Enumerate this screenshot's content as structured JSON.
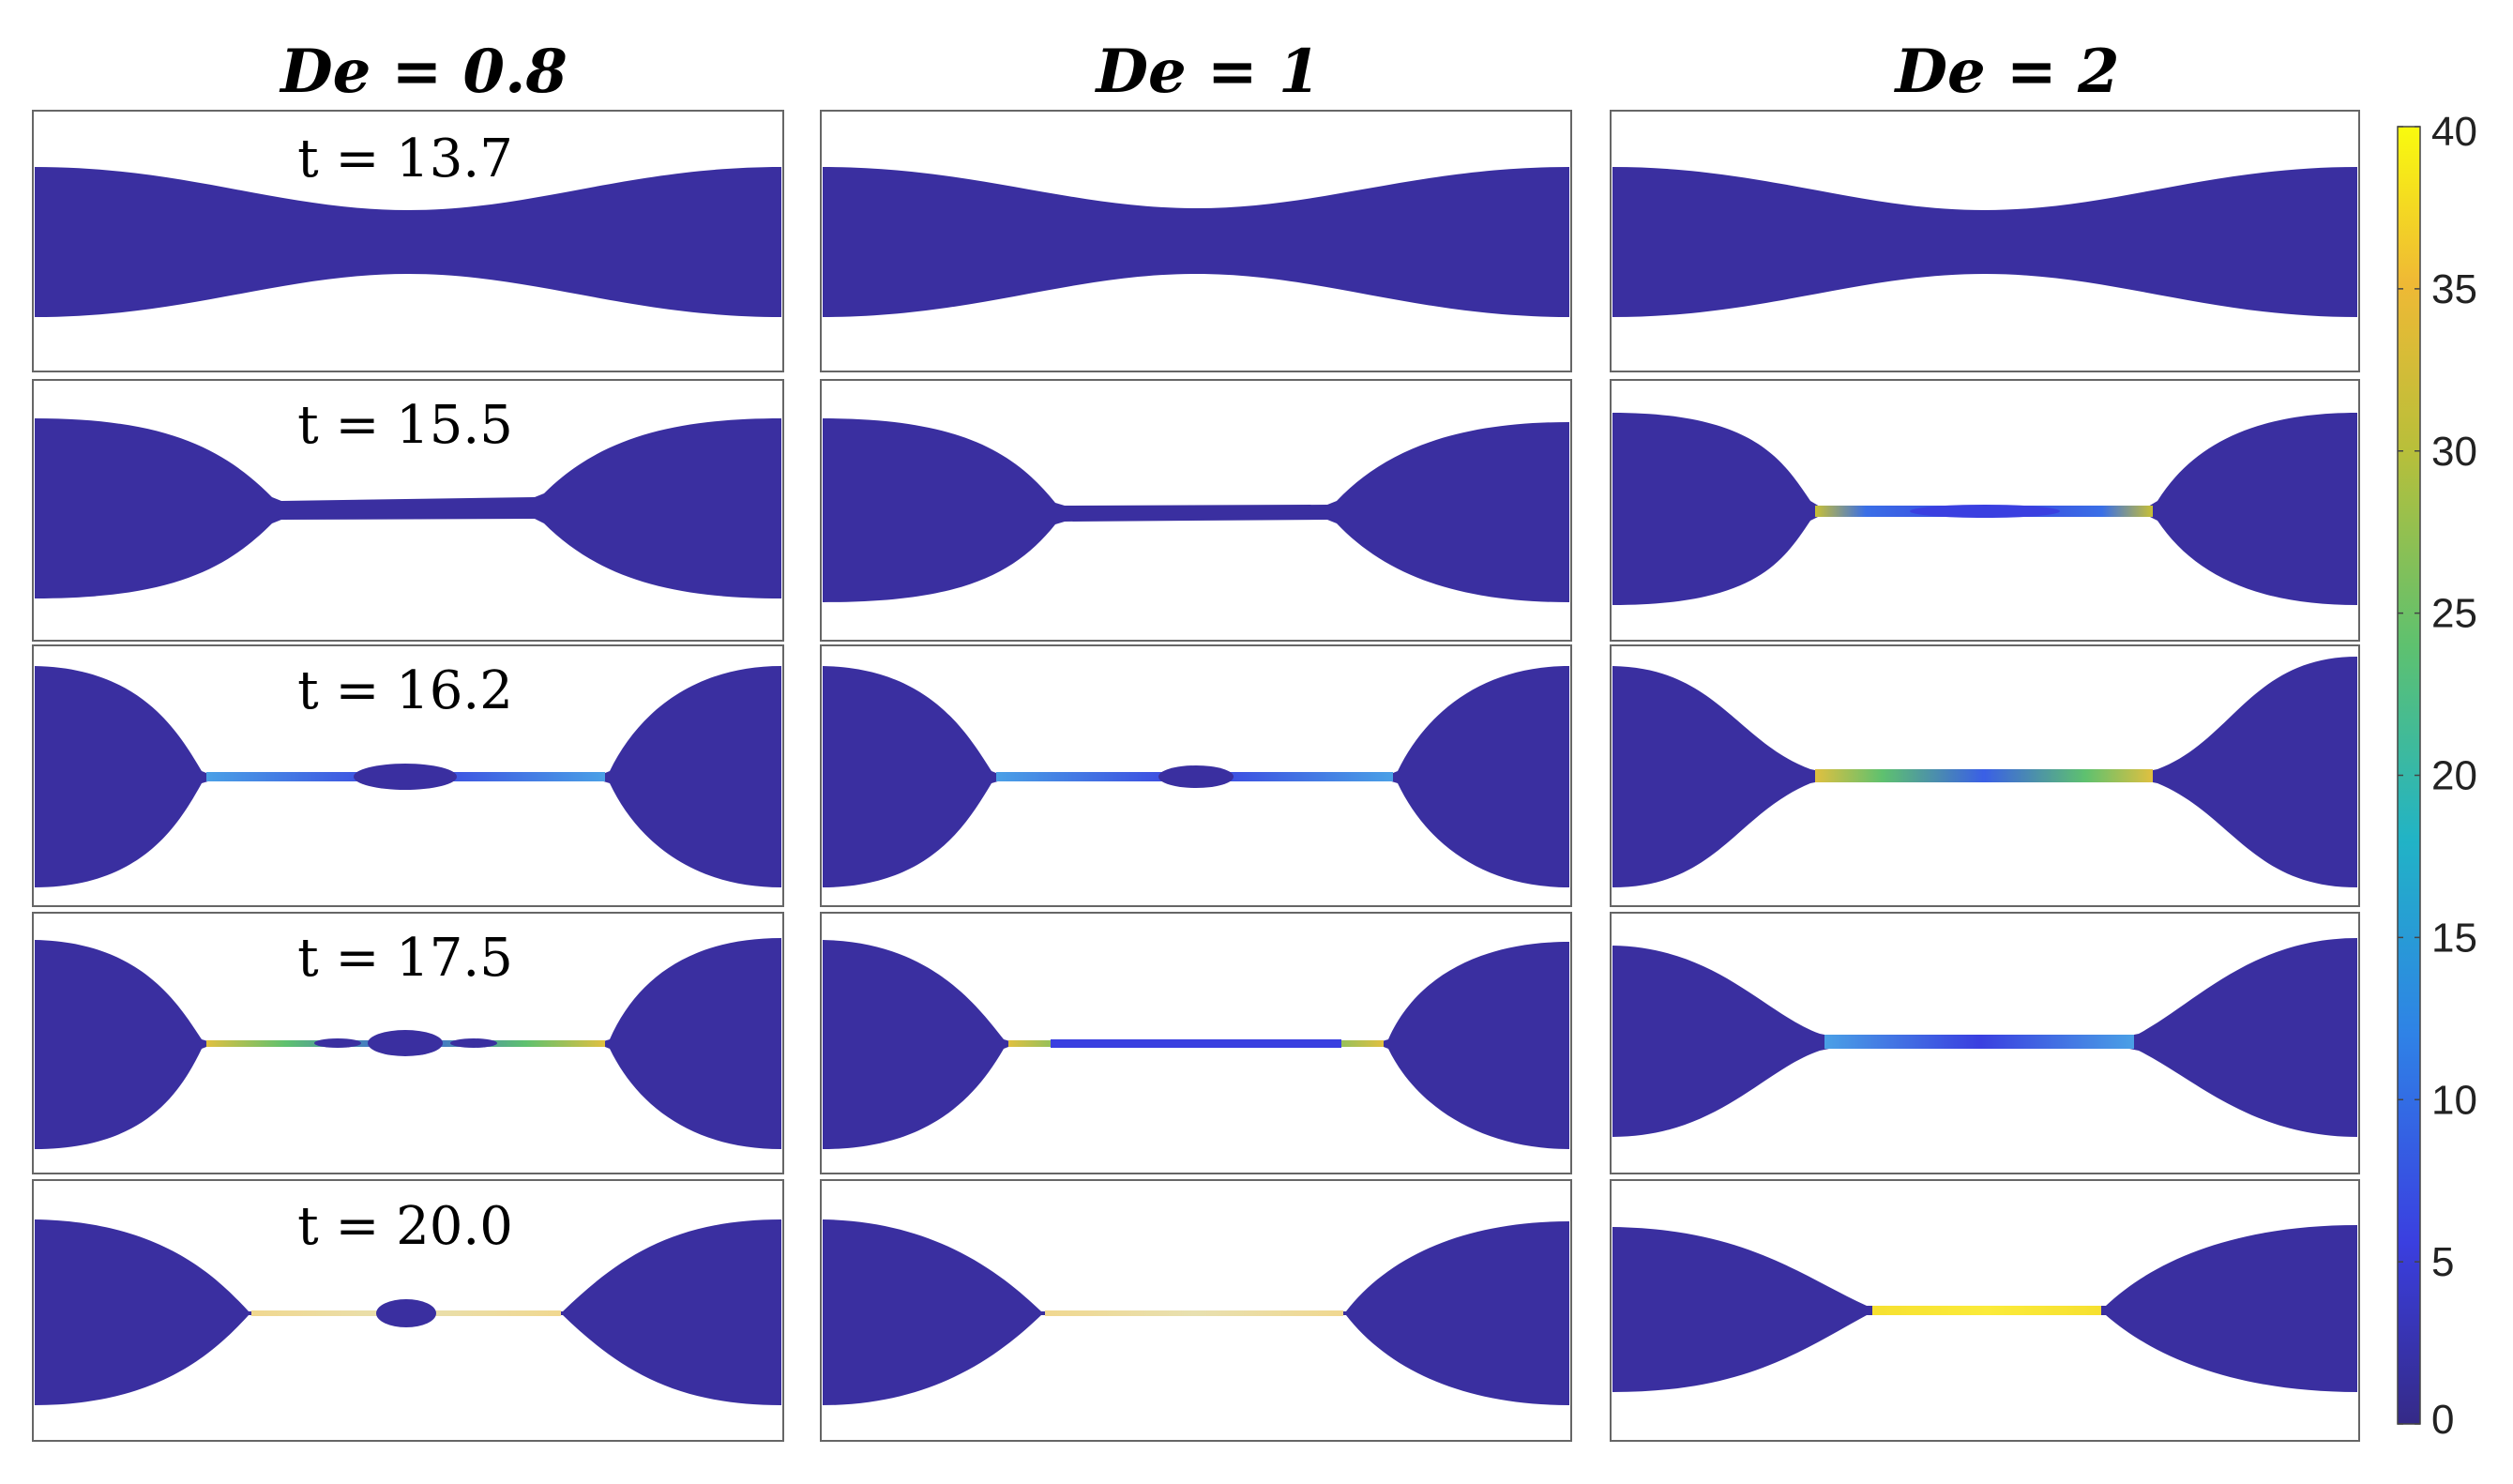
{
  "columns": [
    {
      "label": "De = 0.8"
    },
    {
      "label": "De = 1"
    },
    {
      "label": "De = 2"
    }
  ],
  "rows": [
    {
      "time_label": "t = 13.7"
    },
    {
      "time_label": "t = 15.5"
    },
    {
      "time_label": "t = 16.2"
    },
    {
      "time_label": "t = 17.5"
    },
    {
      "time_label": "t = 20.0"
    }
  ],
  "colorbar": {
    "min": 0,
    "max": 40,
    "ticks": [
      "0",
      "5",
      "10",
      "15",
      "20",
      "25",
      "30",
      "35",
      "40"
    ],
    "colormap": [
      "#352a87",
      "#3a3fe0",
      "#2f82e6",
      "#21b3c6",
      "#5ec16f",
      "#b8bf3a",
      "#efb935",
      "#f9fb0e"
    ]
  },
  "colors": {
    "fluid": "#3a2fa0",
    "background": "#ffffff",
    "frame": "#666666"
  }
}
